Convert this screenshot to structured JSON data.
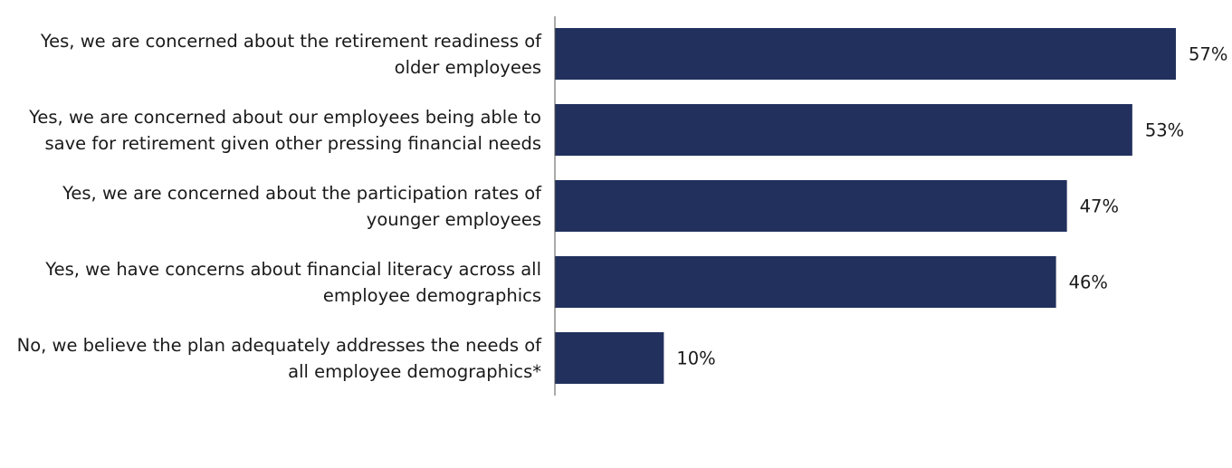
{
  "chart_data": {
    "type": "bar",
    "orientation": "horizontal",
    "categories": [
      [
        "Yes, we are concerned about the retirement readiness of",
        "older employees"
      ],
      [
        "Yes, we are concerned about our employees being able to",
        "save for retirement given other pressing financial needs"
      ],
      [
        "Yes, we are concerned about the participation rates of",
        "younger employees"
      ],
      [
        "Yes, we have concerns about financial literacy across all",
        "employee demographics"
      ],
      [
        "No, we believe the plan adequately addresses the needs of",
        "all employee demographics*"
      ]
    ],
    "values": [
      57,
      53,
      47,
      46,
      10
    ],
    "value_labels": [
      "57%",
      "53%",
      "47%",
      "46%",
      "10%"
    ],
    "unit": "%",
    "xlim": [
      0,
      100
    ],
    "grid": false,
    "legend": "none",
    "colors": {
      "bar": "#22305d",
      "axis": "#555555",
      "text": "#1a1a1a"
    }
  }
}
